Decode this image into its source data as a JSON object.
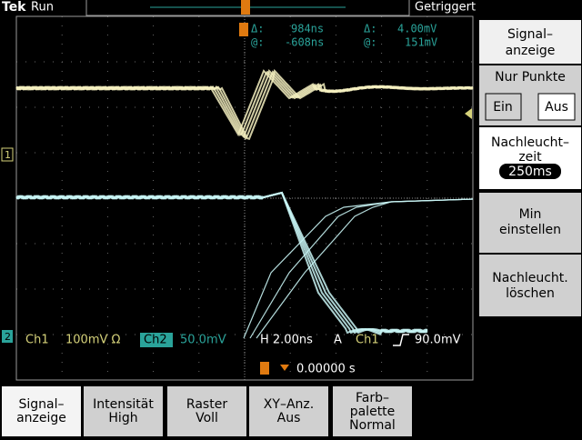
{
  "header": {
    "brand": "Tek",
    "state": "Run",
    "trigger_status": "Getriggert"
  },
  "cursors": {
    "delta_time_label": "Δ:",
    "delta_time": "984ns",
    "pos_time_label": "@:",
    "pos_time": "-608ns",
    "delta_volt_label": "Δ:",
    "delta_volt": "4.00mV",
    "pos_volt_label": "@:",
    "pos_volt": "151mV"
  },
  "channel_markers": [
    "1",
    "2"
  ],
  "status": {
    "ch1_label": "Ch1",
    "ch1_scale": "100mV Ω",
    "ch2_label": "Ch2",
    "ch2_scale": "50.0mV",
    "horizontal": "H 2.00ns",
    "trigger_mode": "A",
    "trigger_source": "Ch1",
    "trigger_level": "90.0mV",
    "trigger_position": "0.00000 s"
  },
  "side_menu": {
    "title": [
      "Signal–",
      "anzeige"
    ],
    "dots_label": "Nur Punkte",
    "dots_options": [
      "Ein",
      "Aus"
    ],
    "persistence": [
      "Nachleucht–",
      "zeit"
    ],
    "persistence_value": "250ms",
    "min_set": [
      "Min",
      "einstellen"
    ],
    "clear": [
      "Nachleucht.",
      "löschen"
    ]
  },
  "bottom_menu": [
    [
      "Signal–",
      "anzeige"
    ],
    [
      "Intensität",
      "High"
    ],
    [
      "Raster",
      "Voll"
    ],
    [
      "XY–Anz.",
      "Aus"
    ],
    [
      "Farb–",
      "palette",
      "Normal"
    ]
  ]
}
